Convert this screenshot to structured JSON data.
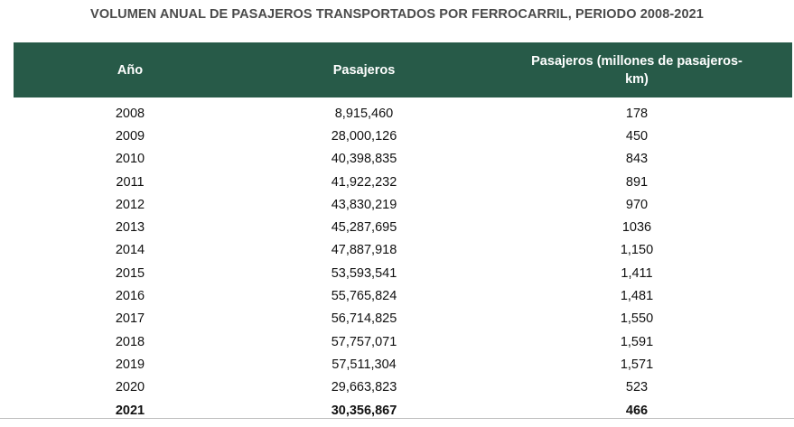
{
  "title": "VOLUMEN ANUAL DE PASAJEROS TRANSPORTADOS POR FERROCARRIL, PERIODO 2008-2021",
  "colors": {
    "header_bg": "#275a48",
    "header_text": "#ffffff",
    "title_text": "#4a4a4a"
  },
  "table": {
    "headers": {
      "year": "Año",
      "passengers": "Pasajeros",
      "passenger_km_line1": "Pasajeros (millones de pasajeros-",
      "passenger_km_line2": "km)"
    },
    "rows": [
      {
        "year": "2008",
        "passengers": "8,915,460",
        "passenger_km": "178"
      },
      {
        "year": "2009",
        "passengers": "28,000,126",
        "passenger_km": "450"
      },
      {
        "year": "2010",
        "passengers": "40,398,835",
        "passenger_km": "843"
      },
      {
        "year": "2011",
        "passengers": "41,922,232",
        "passenger_km": "891"
      },
      {
        "year": "2012",
        "passengers": "43,830,219",
        "passenger_km": "970"
      },
      {
        "year": "2013",
        "passengers": "45,287,695",
        "passenger_km": "1036"
      },
      {
        "year": "2014",
        "passengers": "47,887,918",
        "passenger_km": "1,150"
      },
      {
        "year": "2015",
        "passengers": "53,593,541",
        "passenger_km": "1,411"
      },
      {
        "year": "2016",
        "passengers": "55,765,824",
        "passenger_km": "1,481"
      },
      {
        "year": "2017",
        "passengers": "56,714,825",
        "passenger_km": "1,550"
      },
      {
        "year": "2018",
        "passengers": "57,757,071",
        "passenger_km": "1,591"
      },
      {
        "year": "2019",
        "passengers": "57,511,304",
        "passenger_km": "1,571"
      },
      {
        "year": "2020",
        "passengers": "29,663,823",
        "passenger_km": "523"
      },
      {
        "year": "2021",
        "passengers": "30,356,867",
        "passenger_km": "466"
      }
    ]
  }
}
